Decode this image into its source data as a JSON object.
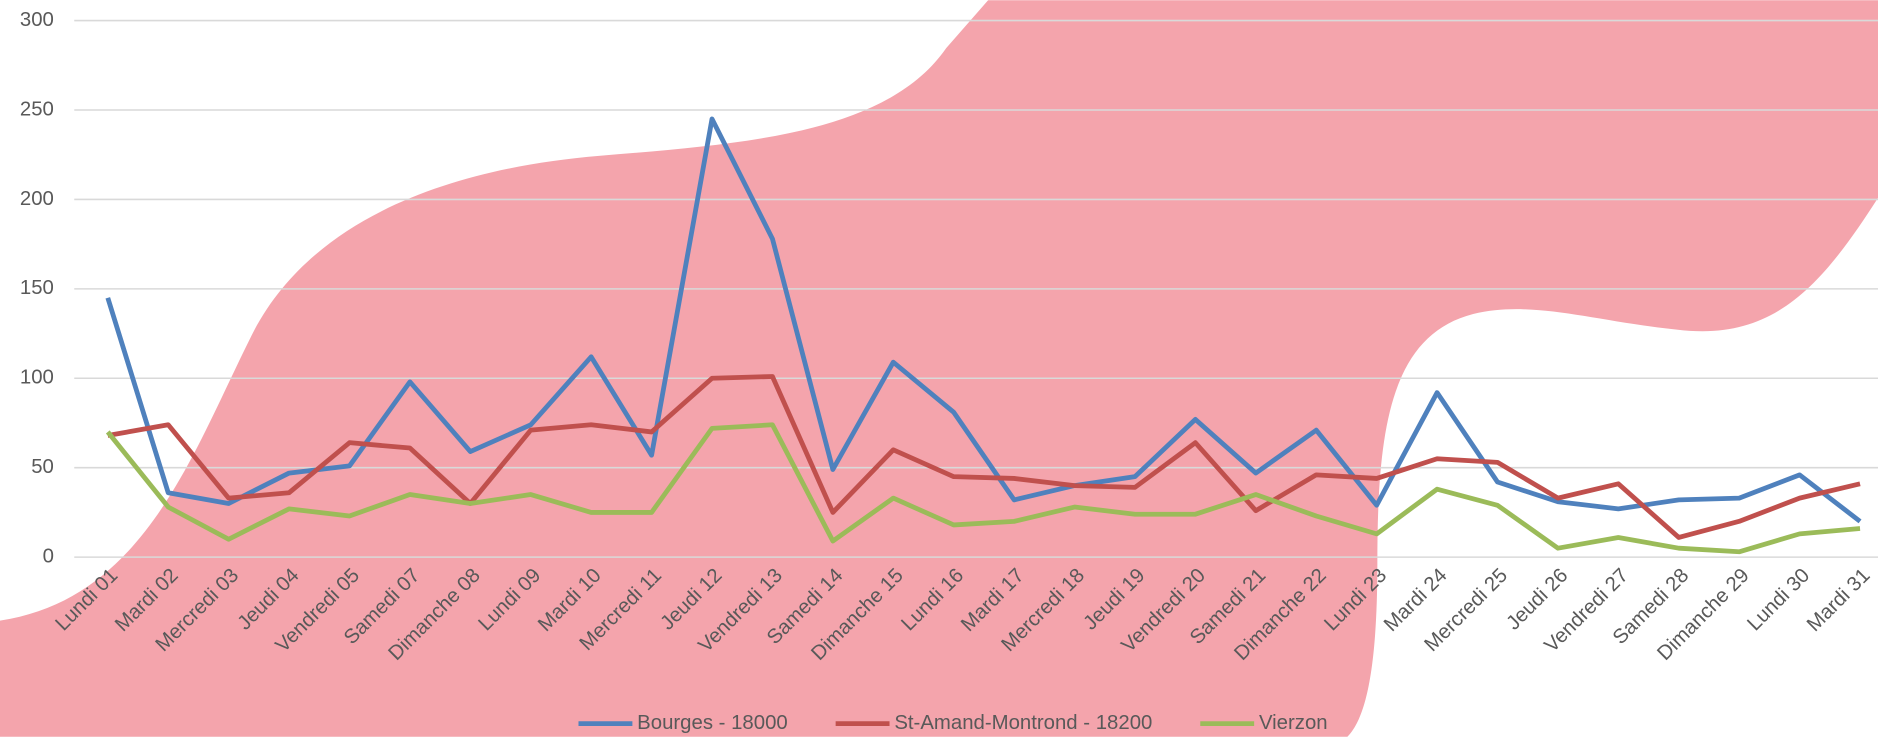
{
  "chart_data": {
    "type": "line",
    "categories": [
      "Lundi 01",
      "Mardi 02",
      "Mercredi 03",
      "Jeudi 04",
      "Vendredi 05",
      "Samedi 07",
      "Dimanche 08",
      "Lundi 09",
      "Mardi 10",
      "Mercredi 11",
      "Jeudi 12",
      "Vendredi 13",
      "Samedi 14",
      "Dimanche 15",
      "Lundi 16",
      "Mardi 17",
      "Mercredi 18",
      "Jeudi 19",
      "Vendredi 20",
      "Samedi 21",
      "Dimanche 22",
      "Lundi 23",
      "Mardi 24",
      "Mercredi 25",
      "Jeudi 26",
      "Vendredi 27",
      "Samedi 28",
      "Dimanche 29",
      "Lundi 30",
      "Mardi 31"
    ],
    "series": [
      {
        "name": "Bourges - 18000",
        "color": "#4f81bd",
        "values": [
          145,
          36,
          30,
          47,
          51,
          98,
          59,
          74,
          112,
          57,
          245,
          178,
          49,
          109,
          81,
          32,
          40,
          45,
          77,
          47,
          71,
          29,
          92,
          42,
          31,
          27,
          32,
          33,
          46,
          20
        ]
      },
      {
        "name": "St-Amand-Montrond - 18200",
        "color": "#c0504d",
        "values": [
          68,
          74,
          33,
          36,
          64,
          61,
          30,
          71,
          74,
          70,
          100,
          101,
          25,
          60,
          45,
          44,
          40,
          39,
          64,
          26,
          46,
          44,
          55,
          53,
          33,
          41,
          11,
          20,
          33,
          41
        ]
      },
      {
        "name": "Vierzon",
        "color": "#9bbb59",
        "values": [
          70,
          28,
          10,
          27,
          23,
          35,
          30,
          35,
          25,
          25,
          72,
          74,
          9,
          33,
          18,
          20,
          28,
          24,
          24,
          35,
          23,
          13,
          38,
          29,
          5,
          11,
          5,
          3,
          13,
          16
        ]
      }
    ],
    "ylim": [
      0,
      300
    ],
    "yticks": [
      0,
      50,
      100,
      150,
      200,
      250,
      300
    ],
    "grid": true,
    "legend": "bottom"
  }
}
